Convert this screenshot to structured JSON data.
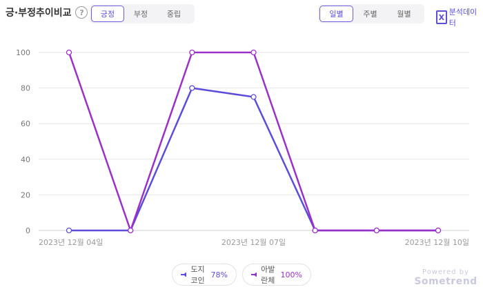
{
  "header": {
    "title": "긍·부정추이비교",
    "help_glyph": "?",
    "sentiment_tabs": [
      "긍정",
      "부정",
      "중립"
    ],
    "period_tabs": [
      "일별",
      "주별",
      "월별"
    ],
    "export_label": "분석데이터",
    "export_icon": "excel-icon"
  },
  "legend": [
    {
      "name": "도지코인",
      "value": "78%",
      "color": "#5b4cdb"
    },
    {
      "name": "아발란체",
      "value": "100%",
      "color": "#9b30c9"
    }
  ],
  "branding": {
    "line1": "Powered by",
    "line2": "Sometrend"
  },
  "chart_data": {
    "type": "line",
    "x": [
      "2023-12-04",
      "2023-12-05",
      "2023-12-06",
      "2023-12-07",
      "2023-12-08",
      "2023-12-09",
      "2023-12-10"
    ],
    "x_tick_labels": [
      "2023년 12월 04일",
      "2023년 12월 07일",
      "2023년 12월 10일"
    ],
    "x_tick_index": [
      0,
      3,
      6
    ],
    "y_ticks": [
      "0",
      "20",
      "40",
      "60",
      "80",
      "100"
    ],
    "ylim": [
      0,
      100
    ],
    "grid": true,
    "x_categories": 7,
    "series": [
      {
        "name": "도지코인",
        "color": "#5b4cdb",
        "x_index": [
          0,
          1,
          2,
          3,
          4,
          5,
          6
        ],
        "values": [
          0,
          0,
          80,
          75,
          0,
          0,
          0
        ]
      },
      {
        "name": "아발란체",
        "color": "#9b30c9",
        "x_index": [
          0,
          1,
          2,
          3,
          4,
          5,
          6
        ],
        "values": [
          100,
          0,
          100,
          100,
          0,
          0,
          0
        ]
      }
    ]
  }
}
